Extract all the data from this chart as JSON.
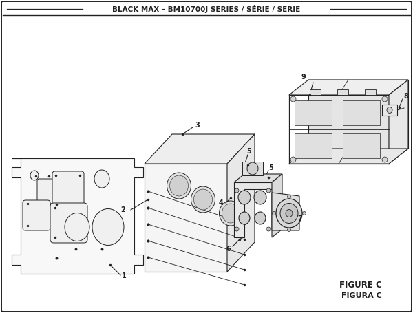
{
  "title": "BLACK MAX – BM10700J SERIES / SÉRIE / SERIE",
  "figure_label": "FIGURE C",
  "figura_label": "FIGURA C",
  "bg_color": "#ffffff",
  "line_color": "#222222",
  "text_color": "#222222",
  "title_fontsize": 7.5,
  "label_fontsize": 7.0,
  "figure_label_fontsize": 8.5
}
